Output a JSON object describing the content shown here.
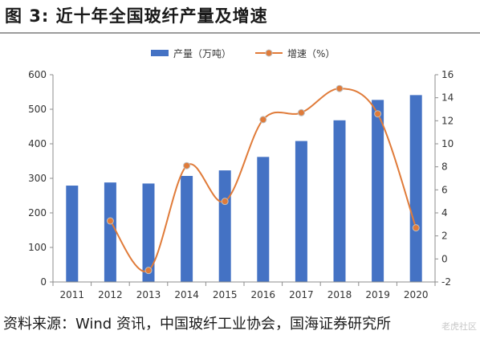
{
  "figure_title": "图 3:  近十年全国玻纤产量及增速",
  "source_note": "资料来源：Wind 资讯，中国玻纤工业协会，国海证券研究所",
  "watermark": "老虎社区",
  "colors": {
    "bar": "#4472C4",
    "line": "#E07B39",
    "marker_fill": "#E07B39",
    "marker_stroke": "#BFBFBF",
    "axis": "#8c8c8c",
    "rule": "#9c9c9c"
  },
  "chart_data": {
    "type": "bar",
    "categories": [
      "2011",
      "2012",
      "2013",
      "2014",
      "2015",
      "2016",
      "2017",
      "2018",
      "2019",
      "2020"
    ],
    "series": [
      {
        "name": "产量（万吨）",
        "kind": "bar",
        "axis": "left",
        "values": [
          279,
          288,
          285,
          307,
          323,
          362,
          408,
          468,
          527,
          541
        ]
      },
      {
        "name": "增速（%）",
        "kind": "line",
        "smooth": true,
        "axis": "right",
        "values": [
          null,
          3.3,
          -1.0,
          8.1,
          5.0,
          12.1,
          12.7,
          14.8,
          12.6,
          2.7
        ]
      }
    ],
    "y_left": {
      "lim": [
        0,
        600
      ],
      "ticks": [
        "0",
        "100",
        "200",
        "300",
        "400",
        "500",
        "600"
      ]
    },
    "y_right": {
      "lim": [
        -2,
        16
      ],
      "ticks": [
        "-2",
        "0",
        "2",
        "4",
        "6",
        "8",
        "10",
        "12",
        "14",
        "16"
      ]
    },
    "grid": false,
    "legend": "top-center"
  }
}
